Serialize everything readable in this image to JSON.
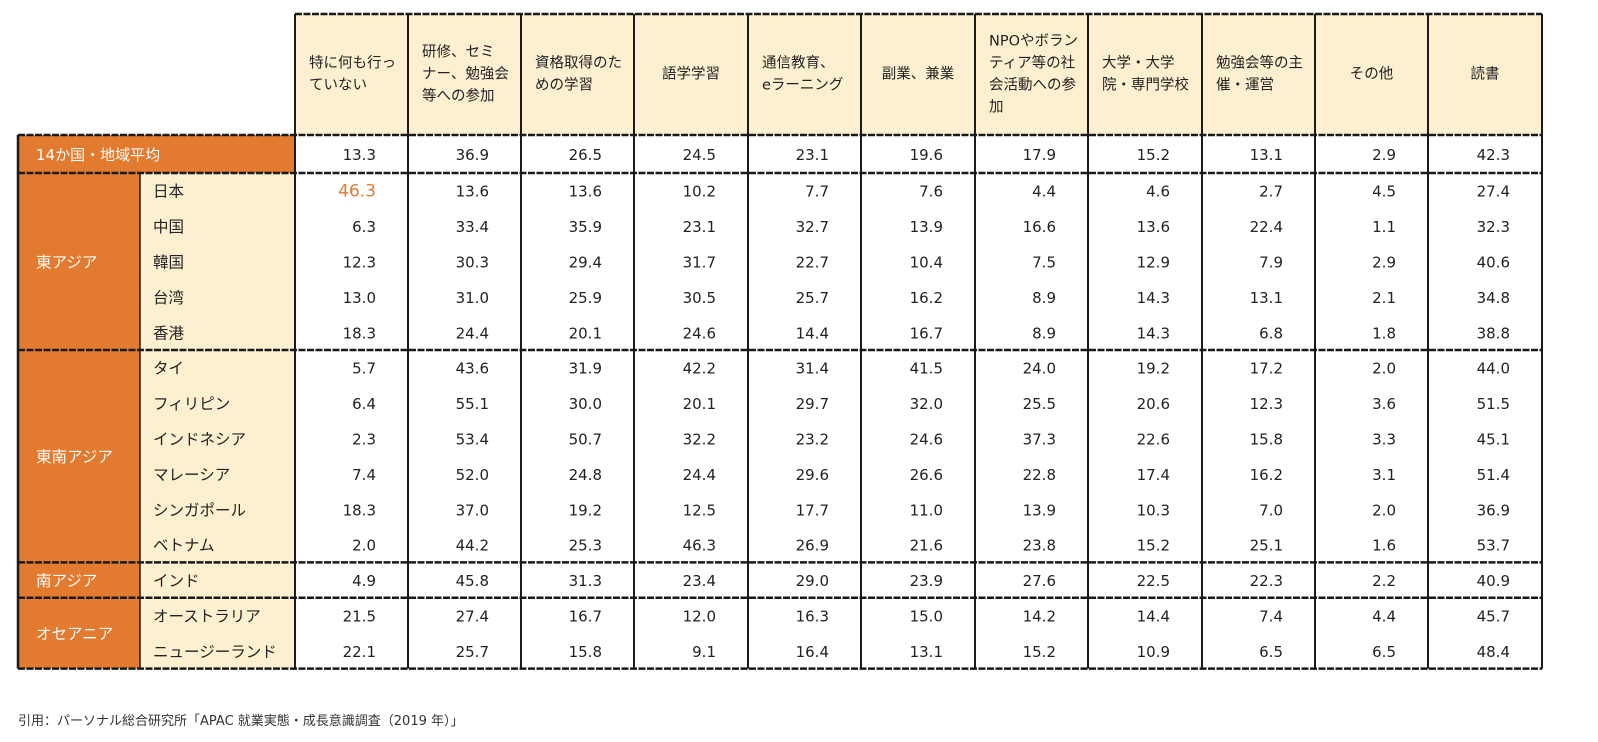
{
  "colors": {
    "orange": "#e27a2f",
    "cream": "#fdf0d0",
    "highlight_text": "#e27a2f",
    "border": "#1a1a1a"
  },
  "chart_data": {
    "type": "table",
    "columns": [
      [
        "特に何も行っ",
        "ていない"
      ],
      [
        "研修、セミ",
        "ナー、勉強会",
        "等への参加"
      ],
      [
        "資格取得のた",
        "めの学習"
      ],
      [
        "語学学習"
      ],
      [
        "通信教育、",
        "eラーニング"
      ],
      [
        "副業、兼業"
      ],
      [
        "NPOやボラン",
        "ティア等の社",
        "会活動への参",
        "加"
      ],
      [
        "大学・大学",
        "院・専門学校"
      ],
      [
        "勉強会等の主",
        "催・運営"
      ],
      [
        "その他"
      ],
      [
        "読書"
      ]
    ],
    "average": {
      "label": "14か国・地域平均",
      "values": [
        "13.3",
        "36.9",
        "26.5",
        "24.5",
        "23.1",
        "19.6",
        "17.9",
        "15.2",
        "13.1",
        "2.9",
        "42.3"
      ]
    },
    "groups": [
      {
        "name": "東アジア",
        "rows": [
          {
            "country": "日本",
            "values": [
              "46.3",
              "13.6",
              "13.6",
              "10.2",
              "7.7",
              "7.6",
              "4.4",
              "4.6",
              "2.7",
              "4.5",
              "27.4"
            ],
            "highlight": 0
          },
          {
            "country": "中国",
            "values": [
              "6.3",
              "33.4",
              "35.9",
              "23.1",
              "32.7",
              "13.9",
              "16.6",
              "13.6",
              "22.4",
              "1.1",
              "32.3"
            ]
          },
          {
            "country": "韓国",
            "values": [
              "12.3",
              "30.3",
              "29.4",
              "31.7",
              "22.7",
              "10.4",
              "7.5",
              "12.9",
              "7.9",
              "2.9",
              "40.6"
            ]
          },
          {
            "country": "台湾",
            "values": [
              "13.0",
              "31.0",
              "25.9",
              "30.5",
              "25.7",
              "16.2",
              "8.9",
              "14.3",
              "13.1",
              "2.1",
              "34.8"
            ]
          },
          {
            "country": "香港",
            "values": [
              "18.3",
              "24.4",
              "20.1",
              "24.6",
              "14.4",
              "16.7",
              "8.9",
              "14.3",
              "6.8",
              "1.8",
              "38.8"
            ]
          }
        ]
      },
      {
        "name": "東南アジア",
        "rows": [
          {
            "country": "タイ",
            "values": [
              "5.7",
              "43.6",
              "31.9",
              "42.2",
              "31.4",
              "41.5",
              "24.0",
              "19.2",
              "17.2",
              "2.0",
              "44.0"
            ]
          },
          {
            "country": "フィリピン",
            "values": [
              "6.4",
              "55.1",
              "30.0",
              "20.1",
              "29.7",
              "32.0",
              "25.5",
              "20.6",
              "12.3",
              "3.6",
              "51.5"
            ]
          },
          {
            "country": "インドネシア",
            "values": [
              "2.3",
              "53.4",
              "50.7",
              "32.2",
              "23.2",
              "24.6",
              "37.3",
              "22.6",
              "15.8",
              "3.3",
              "45.1"
            ]
          },
          {
            "country": "マレーシア",
            "values": [
              "7.4",
              "52.0",
              "24.8",
              "24.4",
              "29.6",
              "26.6",
              "22.8",
              "17.4",
              "16.2",
              "3.1",
              "51.4"
            ]
          },
          {
            "country": "シンガポール",
            "values": [
              "18.3",
              "37.0",
              "19.2",
              "12.5",
              "17.7",
              "11.0",
              "13.9",
              "10.3",
              "7.0",
              "2.0",
              "36.9"
            ]
          },
          {
            "country": "ベトナム",
            "values": [
              "2.0",
              "44.2",
              "25.3",
              "46.3",
              "26.9",
              "21.6",
              "23.8",
              "15.2",
              "25.1",
              "1.6",
              "53.7"
            ]
          }
        ]
      },
      {
        "name": "南アジア",
        "rows": [
          {
            "country": "インド",
            "values": [
              "4.9",
              "45.8",
              "31.3",
              "23.4",
              "29.0",
              "23.9",
              "27.6",
              "22.5",
              "22.3",
              "2.2",
              "40.9"
            ]
          }
        ]
      },
      {
        "name": "オセアニア",
        "rows": [
          {
            "country": "オーストラリア",
            "values": [
              "21.5",
              "27.4",
              "16.7",
              "12.0",
              "16.3",
              "15.0",
              "14.2",
              "14.4",
              "7.4",
              "4.4",
              "45.7"
            ]
          },
          {
            "country": "ニュージーランド",
            "values": [
              "22.1",
              "25.7",
              "15.8",
              "9.1",
              "16.4",
              "13.1",
              "15.2",
              "10.9",
              "6.5",
              "6.5",
              "48.4"
            ]
          }
        ]
      }
    ]
  },
  "citation": "引用：パーソナル総合研究所「APAC 就業実態・成長意識調査（2019 年）」"
}
